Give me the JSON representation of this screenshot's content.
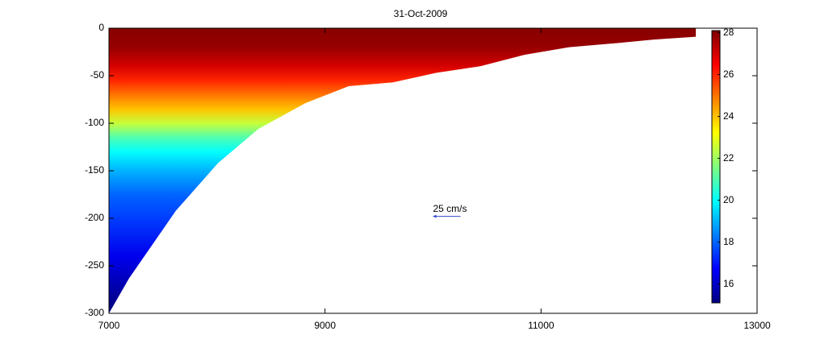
{
  "chart_data": {
    "type": "section",
    "title": "31-Oct-2009",
    "x": [
      7000,
      7187,
      7620,
      8009,
      8383,
      8816,
      9219,
      9630,
      10026,
      10437,
      10848,
      11259,
      11670,
      12044,
      12433,
      12433
    ],
    "bottom": [
      -300,
      -263,
      -192,
      -142,
      -106,
      -79,
      -61,
      -57,
      -47,
      -40,
      -28,
      -20,
      -16,
      -12,
      -9,
      0
    ],
    "profile": {
      "depth": [
        0,
        -20,
        -40,
        -55,
        -70,
        -85,
        -100,
        -115,
        -130,
        -150,
        -175,
        -200,
        -240,
        -300
      ],
      "temperature": [
        28,
        27.8,
        27,
        26,
        25,
        24,
        22.5,
        21,
        20,
        19,
        18,
        17.5,
        16.5,
        15
      ]
    },
    "xlim": [
      7000,
      13000
    ],
    "xticks": [
      7000,
      9000,
      11000,
      13000
    ],
    "ylim": [
      -300,
      0
    ],
    "yticks": [
      -300,
      -250,
      -200,
      -150,
      -100,
      -50,
      0
    ],
    "clim": [
      15.1,
      28.1
    ],
    "cticks": [
      16,
      18,
      20,
      22,
      24,
      26,
      28
    ],
    "colormap": "jet",
    "annotation": {
      "text": "25 cm/s",
      "x": 10000,
      "y": -198
    }
  }
}
